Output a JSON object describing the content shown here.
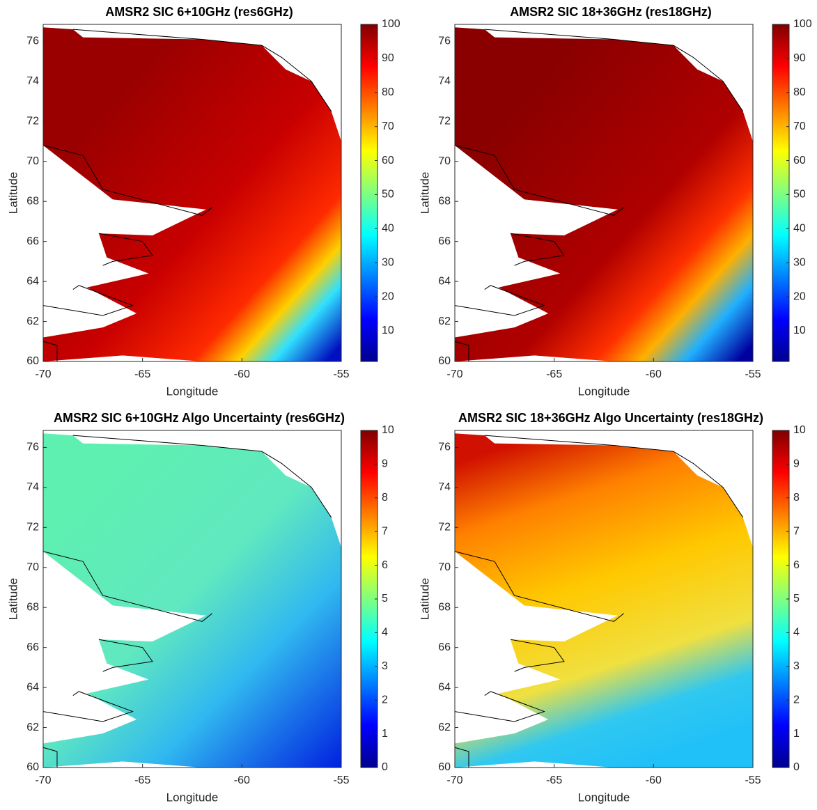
{
  "chart_data": [
    {
      "type": "map",
      "title": "AMSR2 SIC 6+10GHz (res6GHz)",
      "x_label": "Longitude",
      "y_label": "Latitude",
      "xlim": [
        -70,
        -55
      ],
      "ylim": [
        60,
        76.85
      ],
      "xticks": [
        -70,
        -65,
        -60,
        -55
      ],
      "yticks": [
        60,
        62,
        64,
        66,
        68,
        70,
        72,
        74,
        76
      ],
      "colormap": "jet",
      "clim": [
        1,
        100
      ],
      "cticks": [
        10,
        20,
        30,
        40,
        50,
        60,
        70,
        80,
        90,
        100
      ]
    },
    {
      "type": "map",
      "title": "AMSR2 SIC 18+36GHz (res18GHz)",
      "x_label": "Longitude",
      "y_label": "Latitude",
      "xlim": [
        -70,
        -55
      ],
      "ylim": [
        60,
        76.85
      ],
      "xticks": [
        -70,
        -65,
        -60,
        -55
      ],
      "yticks": [
        60,
        62,
        64,
        66,
        68,
        70,
        72,
        74,
        76
      ],
      "colormap": "jet",
      "clim": [
        1,
        100
      ],
      "cticks": [
        10,
        20,
        30,
        40,
        50,
        60,
        70,
        80,
        90,
        100
      ]
    },
    {
      "type": "map",
      "title": "AMSR2 SIC 6+10GHz Algo Uncertainty (res6GHz)",
      "x_label": "Longitude",
      "y_label": "Latitude",
      "xlim": [
        -70,
        -55
      ],
      "ylim": [
        60,
        76.85
      ],
      "xticks": [
        -70,
        -65,
        -60,
        -55
      ],
      "yticks": [
        60,
        62,
        64,
        66,
        68,
        70,
        72,
        74,
        76
      ],
      "colormap": "jet",
      "clim": [
        0,
        10
      ],
      "cticks": [
        0,
        1,
        2,
        3,
        4,
        5,
        6,
        7,
        8,
        9,
        10
      ]
    },
    {
      "type": "map",
      "title": "AMSR2 SIC 18+36GHz Algo Uncertainty (res18GHz)",
      "x_label": "Longitude",
      "y_label": "Latitude",
      "xlim": [
        -70,
        -55
      ],
      "ylim": [
        60,
        76.85
      ],
      "xticks": [
        -70,
        -65,
        -60,
        -55
      ],
      "yticks": [
        60,
        62,
        64,
        66,
        68,
        70,
        72,
        74,
        76
      ],
      "colormap": "jet",
      "clim": [
        0,
        10
      ],
      "cticks": [
        0,
        1,
        2,
        3,
        4,
        5,
        6,
        7,
        8,
        9,
        10
      ]
    }
  ]
}
